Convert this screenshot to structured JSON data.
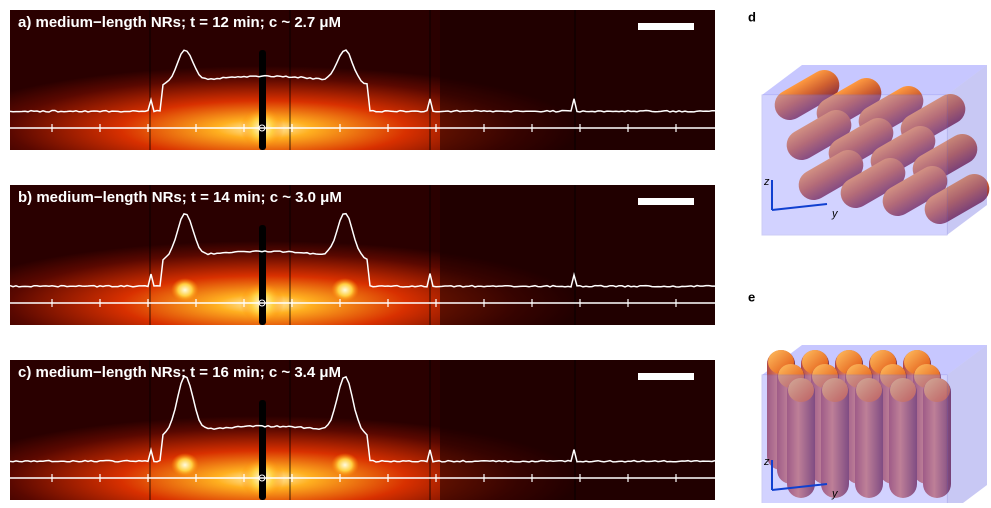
{
  "panels": [
    {
      "title": "a) medium−length NRs; t = 12 min; c ~ 2.7 μM"
    },
    {
      "title": "b) medium−length NRs; t = 14 min; c ~ 3.0 μM"
    },
    {
      "title": "c) medium−length NRs; t = 16 min; c ~ 3.4 μM"
    }
  ],
  "diagrams": [
    {
      "label": "d",
      "axes": [
        "z",
        "y"
      ]
    },
    {
      "label": "e",
      "axes": [
        "z",
        "y"
      ]
    }
  ]
}
